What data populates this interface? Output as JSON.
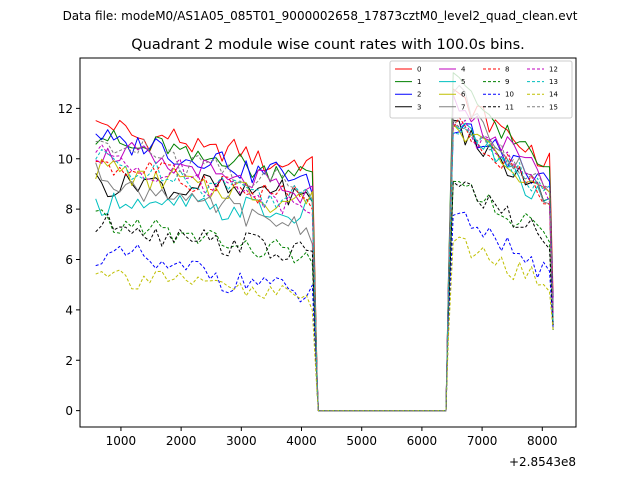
{
  "suptitle": "Data file: modeM0/AS1A05_085T01_9000002658_17873cztM0_level2_quad_clean.evt",
  "chart_data": {
    "type": "line",
    "title": "Quadrant 2 module wise count rates with 100.0s bins.",
    "xlabel": "",
    "ylabel": "",
    "x_offset_label": "+2.8543e8",
    "xlim": [
      320,
      8560
    ],
    "ylim": [
      -0.65,
      14.0
    ],
    "xticks": [
      1000,
      2000,
      3000,
      4000,
      5000,
      6000,
      7000,
      8000
    ],
    "xtick_labels": [
      "1000",
      "2000",
      "3000",
      "4000",
      "5000",
      "6000",
      "7000",
      "8000"
    ],
    "yticks": [
      0,
      2,
      4,
      6,
      8,
      10,
      12
    ],
    "ytick_labels": [
      "0",
      "2",
      "4",
      "6",
      "8",
      "10",
      "12"
    ],
    "legend_position": "top-right",
    "gap": {
      "start": 4280,
      "end": 6400,
      "value": 0
    },
    "segment1_x": {
      "start": 580,
      "end": 4180,
      "step": 100,
      "last_x": 4260
    },
    "segment2_x": {
      "first_x": 6440,
      "start": 6520,
      "end": 8120,
      "step": 100,
      "last_x": 8180
    },
    "series": [
      {
        "name": "0",
        "color": "#ff0000",
        "dash": "solid",
        "seg1_start": 11.3,
        "seg1_end": 9.6,
        "seg1_last": 1.2,
        "seg2_first": 5.0,
        "seg2_peak": 12.5,
        "seg2_end": 9.8,
        "seg2_last": 4.5
      },
      {
        "name": "1",
        "color": "#008000",
        "dash": "solid",
        "seg1_start": 10.8,
        "seg1_end": 9.3,
        "seg1_last": 1.2,
        "seg2_first": 5.2,
        "seg2_peak": 13.1,
        "seg2_end": 9.4,
        "seg2_last": 4.0
      },
      {
        "name": "2",
        "color": "#0000ff",
        "dash": "solid",
        "seg1_start": 10.9,
        "seg1_end": 9.1,
        "seg1_last": 1.1,
        "seg2_first": 4.8,
        "seg2_peak": 11.4,
        "seg2_end": 9.0,
        "seg2_last": 4.2
      },
      {
        "name": "3",
        "color": "#000000",
        "dash": "solid",
        "seg1_start": 9.1,
        "seg1_end": 8.6,
        "seg1_last": 1.0,
        "seg2_first": 4.6,
        "seg2_peak": 11.3,
        "seg2_end": 8.4,
        "seg2_last": 3.5
      },
      {
        "name": "4",
        "color": "#bf00bf",
        "dash": "solid",
        "seg1_start": 10.4,
        "seg1_end": 8.5,
        "seg1_last": 1.1,
        "seg2_first": 4.9,
        "seg2_peak": 12.3,
        "seg2_end": 9.0,
        "seg2_last": 3.9
      },
      {
        "name": "5",
        "color": "#00bfbf",
        "dash": "solid",
        "seg1_start": 8.3,
        "seg1_end": 7.8,
        "seg1_last": 0.9,
        "seg2_first": 4.3,
        "seg2_peak": 11.7,
        "seg2_end": 8.0,
        "seg2_last": 3.4
      },
      {
        "name": "6",
        "color": "#bfbf00",
        "dash": "solid",
        "seg1_start": 9.6,
        "seg1_end": 8.2,
        "seg1_last": 1.0,
        "seg2_first": 4.5,
        "seg2_peak": 11.4,
        "seg2_end": 8.4,
        "seg2_last": 3.7
      },
      {
        "name": "7",
        "color": "#808080",
        "dash": "solid",
        "seg1_start": 9.3,
        "seg1_end": 7.1,
        "seg1_last": 0.9,
        "seg2_first": 4.7,
        "seg2_peak": 12.9,
        "seg2_end": 8.2,
        "seg2_last": 3.2
      },
      {
        "name": "8",
        "color": "#ff0000",
        "dash": "dashed",
        "seg1_start": 9.9,
        "seg1_end": 8.3,
        "seg1_last": 1.0,
        "seg2_first": 4.6,
        "seg2_peak": 11.6,
        "seg2_end": 8.4,
        "seg2_last": 3.6
      },
      {
        "name": "9",
        "color": "#008000",
        "dash": "dashed",
        "seg1_start": 7.6,
        "seg1_end": 6.0,
        "seg1_last": 0.8,
        "seg2_first": 3.8,
        "seg2_peak": 9.2,
        "seg2_end": 6.8,
        "seg2_last": 3.2
      },
      {
        "name": "10",
        "color": "#0000ff",
        "dash": "dashed",
        "seg1_start": 6.3,
        "seg1_end": 4.6,
        "seg1_last": 0.7,
        "seg2_first": 3.3,
        "seg2_peak": 7.8,
        "seg2_end": 5.4,
        "seg2_last": 3.3
      },
      {
        "name": "11",
        "color": "#000000",
        "dash": "dashed",
        "seg1_start": 7.5,
        "seg1_end": 6.2,
        "seg1_last": 0.8,
        "seg2_first": 3.8,
        "seg2_peak": 9.1,
        "seg2_end": 6.8,
        "seg2_last": 3.4
      },
      {
        "name": "12",
        "color": "#bf00bf",
        "dash": "dashed",
        "seg1_start": 10.2,
        "seg1_end": 8.1,
        "seg1_last": 1.0,
        "seg2_first": 4.7,
        "seg2_peak": 11.5,
        "seg2_end": 8.6,
        "seg2_last": 3.8
      },
      {
        "name": "13",
        "color": "#00bfbf",
        "dash": "dashed",
        "seg1_start": 9.9,
        "seg1_end": 8.3,
        "seg1_last": 1.0,
        "seg2_first": 4.7,
        "seg2_peak": 11.4,
        "seg2_end": 8.5,
        "seg2_last": 3.5
      },
      {
        "name": "14",
        "color": "#bfbf00",
        "dash": "dashed",
        "seg1_start": 5.6,
        "seg1_end": 4.4,
        "seg1_last": 0.6,
        "seg2_first": 2.9,
        "seg2_peak": 6.7,
        "seg2_end": 5.0,
        "seg2_last": 3.2
      },
      {
        "name": "15",
        "color": "#808080",
        "dash": "dashed",
        "seg1_start": 10.7,
        "seg1_end": 8.7,
        "seg1_last": 1.0,
        "seg2_first": 4.9,
        "seg2_peak": 11.6,
        "seg2_end": 8.8,
        "seg2_last": 3.9
      }
    ]
  }
}
